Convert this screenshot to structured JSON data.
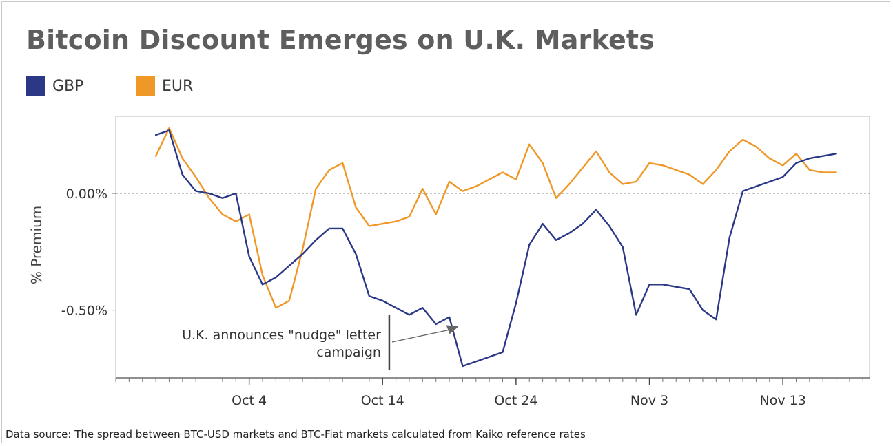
{
  "title": "Bitcoin Discount Emerges on U.K. Markets",
  "source": "Data source: The spread between BTC-USD markets and BTC-Fiat markets calculated from Kaiko reference rates",
  "legend": [
    {
      "name": "GBP",
      "color": "#2a3886"
    },
    {
      "name": "EUR",
      "color": "#ef9827"
    }
  ],
  "chart_data": {
    "type": "line",
    "title": "Bitcoin Discount Emerges on U.K. Markets",
    "xlabel": "",
    "ylabel": "% Premium",
    "x_ticks": [
      "Oct 4",
      "Oct 14",
      "Oct 24",
      "Nov 3",
      "Nov 13"
    ],
    "x_tick_values": [
      4,
      14,
      24,
      34,
      44
    ],
    "x_note": "x = day number counted from Oct 1 (Oct 4 = 4, Nov 3 = 34, Nov 13 = 44)",
    "y_ticks": [
      "0.00%",
      "-0.50%"
    ],
    "y_tick_values": [
      0.0,
      -0.5
    ],
    "xlim": [
      -6,
      50.5
    ],
    "ylim": [
      -0.79,
      0.33
    ],
    "grid": false,
    "legend_position": "top-left",
    "reference_line": 0.0,
    "series": [
      {
        "name": "GBP",
        "color": "#2a3886",
        "x": [
          -3,
          -2,
          -1,
          0,
          1,
          2,
          3,
          4,
          5,
          6,
          7,
          8,
          9,
          10,
          11,
          12,
          13,
          14,
          15,
          16,
          17,
          18,
          19,
          20,
          21,
          22,
          23,
          24,
          25,
          26,
          27,
          28,
          29,
          30,
          31,
          32,
          33,
          34,
          35,
          36,
          37,
          38,
          39,
          40,
          41,
          42,
          43,
          44,
          45,
          46,
          47,
          48
        ],
        "y": [
          0.25,
          0.27,
          0.08,
          0.01,
          0.0,
          -0.02,
          0.0,
          -0.27,
          -0.39,
          -0.36,
          -0.31,
          -0.26,
          -0.2,
          -0.15,
          -0.15,
          -0.26,
          -0.44,
          -0.46,
          -0.49,
          -0.52,
          -0.49,
          -0.56,
          -0.53,
          -0.74,
          -0.72,
          -0.7,
          -0.68,
          -0.47,
          -0.22,
          -0.13,
          -0.2,
          -0.17,
          -0.13,
          -0.07,
          -0.14,
          -0.23,
          -0.52,
          -0.39,
          -0.39,
          -0.4,
          -0.41,
          -0.5,
          -0.54,
          -0.19,
          0.01,
          0.03,
          0.05,
          0.07,
          0.13,
          0.15,
          0.16,
          0.17
        ]
      },
      {
        "name": "EUR",
        "color": "#ef9827",
        "x": [
          -3,
          -2,
          -1,
          0,
          1,
          2,
          3,
          4,
          5,
          6,
          7,
          8,
          9,
          10,
          11,
          12,
          13,
          14,
          15,
          16,
          17,
          18,
          19,
          20,
          21,
          22,
          23,
          24,
          25,
          26,
          27,
          28,
          29,
          30,
          31,
          32,
          33,
          34,
          35,
          36,
          37,
          38,
          39,
          40,
          41,
          42,
          43,
          44,
          45,
          46,
          47,
          48
        ],
        "y": [
          0.16,
          0.28,
          0.15,
          0.07,
          -0.02,
          -0.09,
          -0.12,
          -0.09,
          -0.35,
          -0.49,
          -0.46,
          -0.24,
          0.02,
          0.1,
          0.13,
          -0.06,
          -0.14,
          -0.13,
          -0.12,
          -0.1,
          0.02,
          -0.09,
          0.05,
          0.01,
          0.03,
          0.06,
          0.09,
          0.06,
          0.21,
          0.13,
          -0.02,
          0.04,
          0.11,
          0.18,
          0.09,
          0.04,
          0.05,
          0.13,
          0.12,
          0.1,
          0.08,
          0.04,
          0.1,
          0.18,
          0.23,
          0.2,
          0.15,
          0.12,
          0.17,
          0.1,
          0.09,
          0.09
        ]
      }
    ],
    "annotation": {
      "lines": [
        "U.K. announces \"nudge\" letter",
        "campaign"
      ],
      "x": 14.5,
      "arrow_to": [
        19.7,
        -0.57
      ]
    }
  }
}
